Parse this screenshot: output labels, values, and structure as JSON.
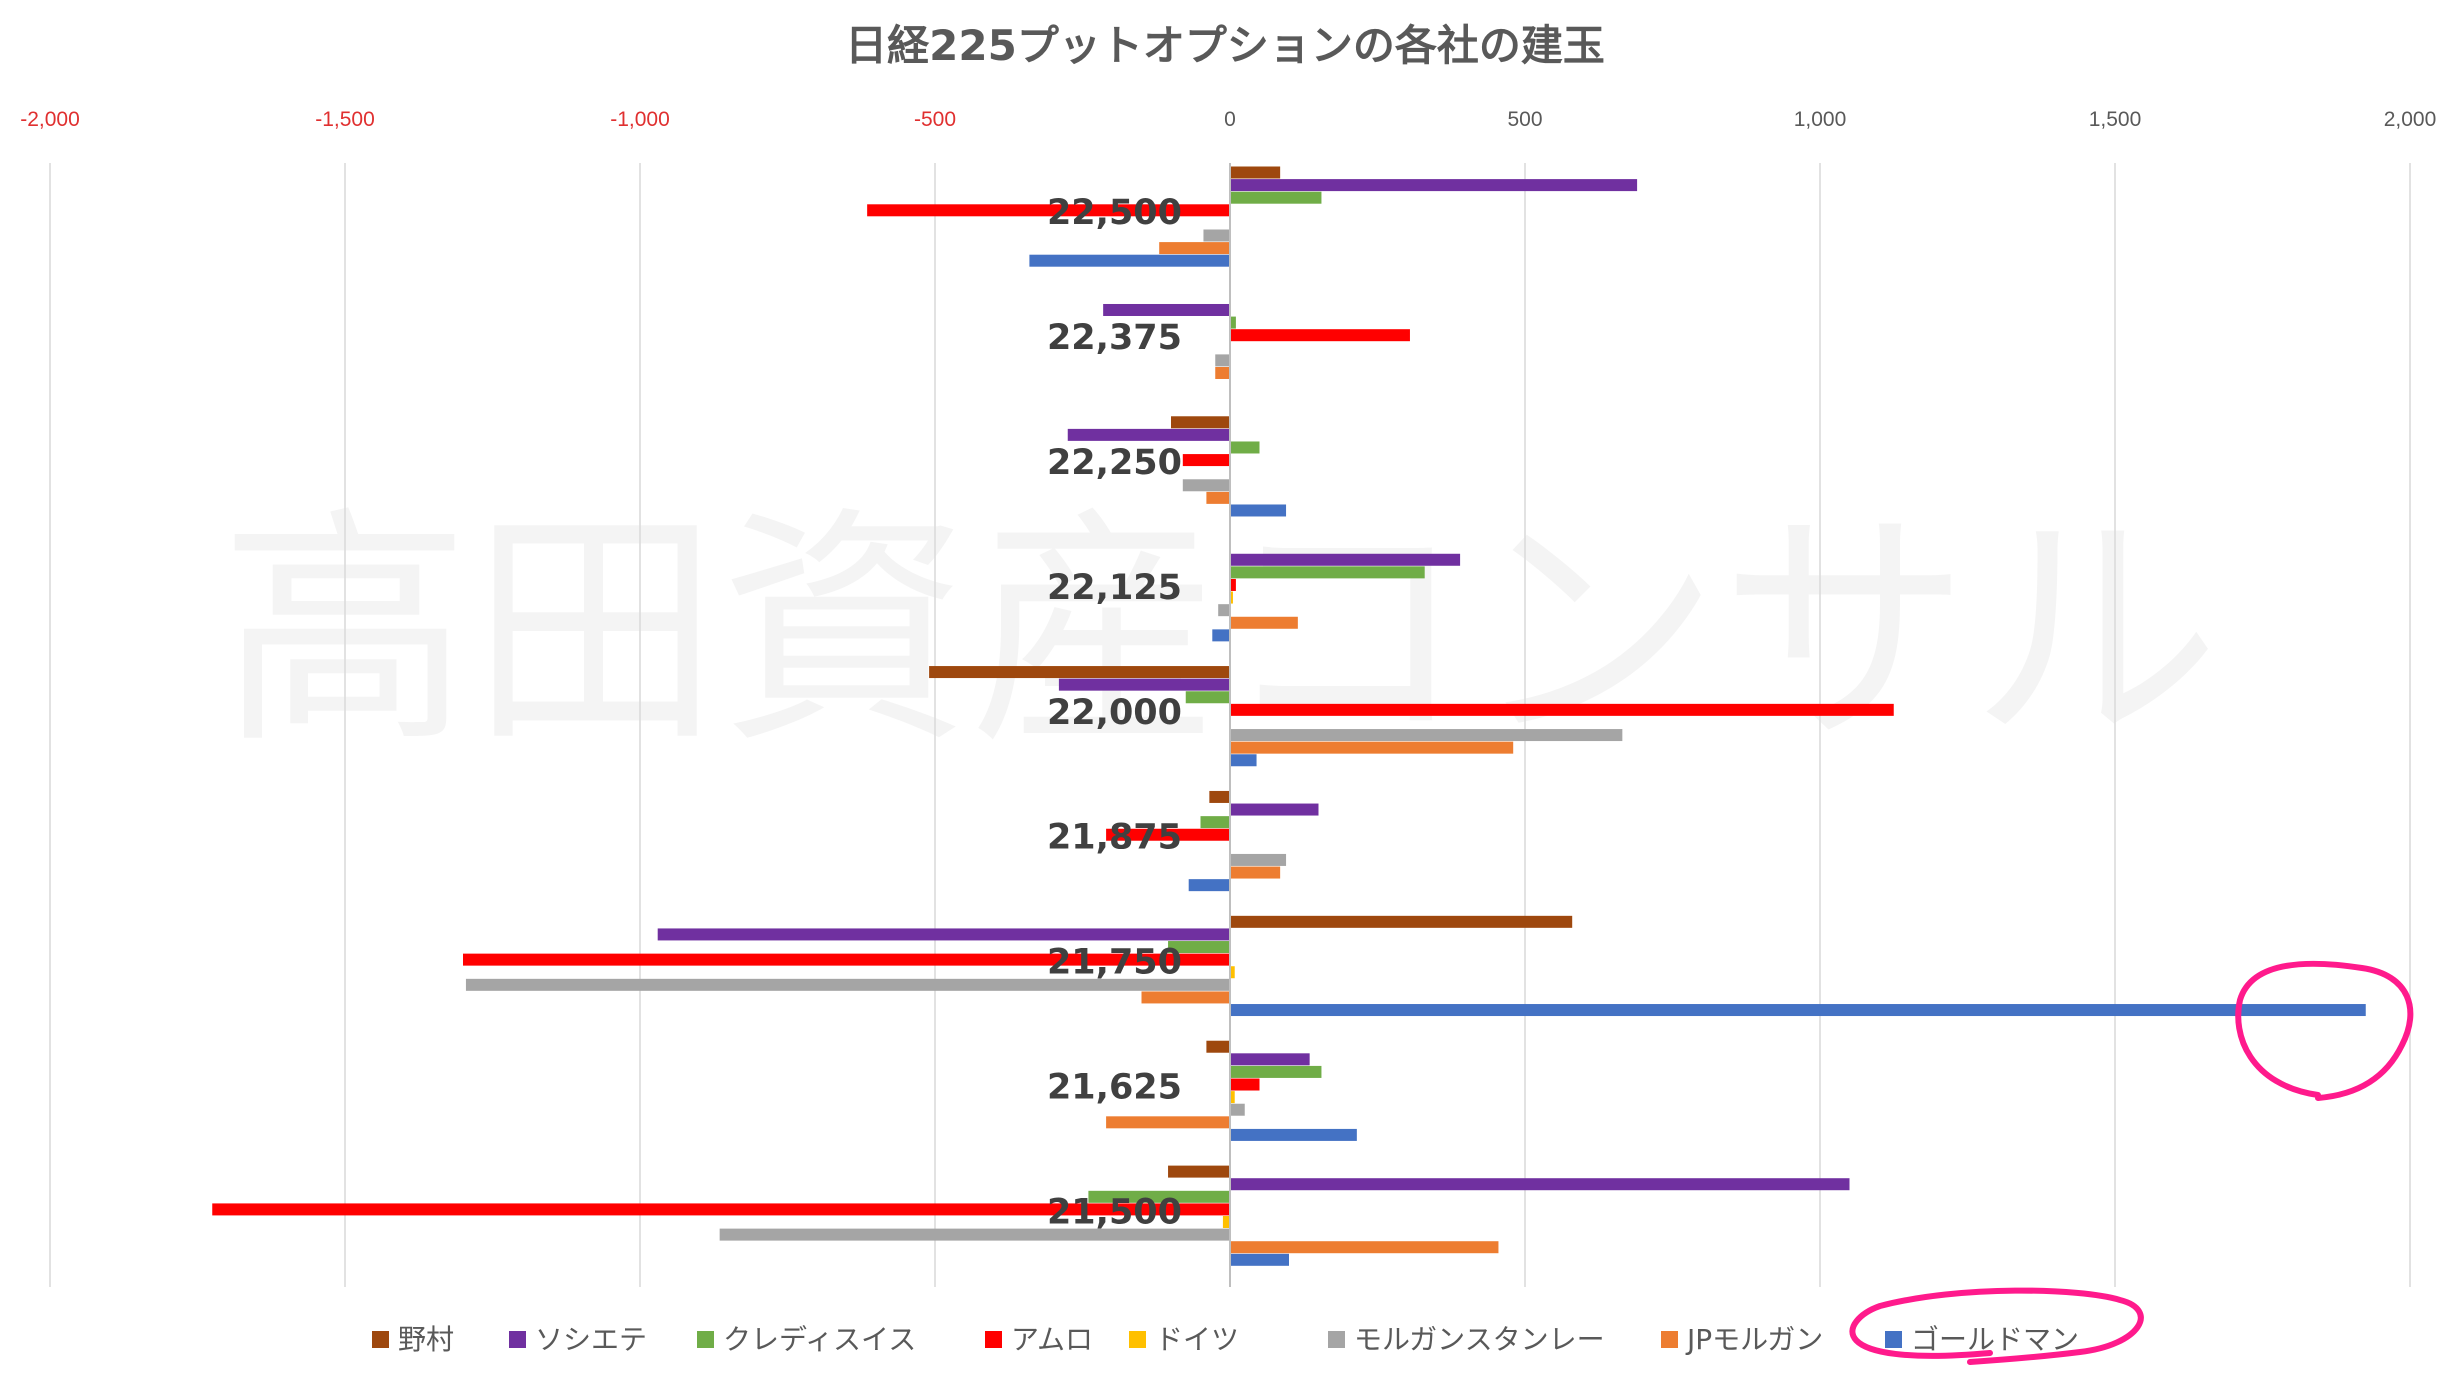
{
  "chart_data": {
    "type": "bar",
    "orientation": "horizontal",
    "title": "日経225プットオプションの各社の建玉",
    "watermark": "高田資産コンサル",
    "xlim": [
      -2000,
      2000
    ],
    "xticks": [
      -2000,
      -1500,
      -1000,
      -500,
      0,
      500,
      1000,
      1500,
      2000
    ],
    "xtick_labels": [
      "-2,000",
      "-1,500",
      "-1,000",
      "-500",
      "0",
      "500",
      "1,000",
      "1,500",
      "2,000"
    ],
    "negative_tick_color": "#e03030",
    "positive_tick_color": "#595959",
    "grid": true,
    "legend_position": "bottom",
    "categories": [
      "22,500",
      "22,375",
      "22,250",
      "22,125",
      "22,000",
      "21,875",
      "21,750",
      "21,625",
      "21,500"
    ],
    "series": [
      {
        "name": "野村",
        "color": "#9e480e",
        "values": [
          85,
          0,
          -100,
          0,
          -510,
          -35,
          580,
          -40,
          -105
        ]
      },
      {
        "name": "ソシエテ",
        "color": "#7030a0",
        "values": [
          690,
          -215,
          -275,
          390,
          -290,
          150,
          -970,
          135,
          1050
        ]
      },
      {
        "name": "クレディスイス",
        "color": "#70ad47",
        "values": [
          155,
          10,
          50,
          330,
          -75,
          -50,
          -105,
          155,
          -240
        ]
      },
      {
        "name": "アムロ",
        "color": "#ff0000",
        "values": [
          -615,
          305,
          -80,
          10,
          1125,
          -210,
          -1300,
          50,
          -1725
        ]
      },
      {
        "name": "ドイツ",
        "color": "#ffc000",
        "values": [
          0,
          0,
          0,
          5,
          0,
          0,
          8,
          8,
          -12
        ]
      },
      {
        "name": "モルガンスタンレー",
        "color": "#a5a5a5",
        "values": [
          -45,
          -25,
          -80,
          -20,
          665,
          95,
          -1295,
          25,
          -865
        ]
      },
      {
        "name": "JPモルガン",
        "color": "#ed7d31",
        "values": [
          -120,
          -25,
          -40,
          115,
          480,
          85,
          -150,
          -210,
          455
        ]
      },
      {
        "name": "ゴールドマン",
        "color": "#4472c4",
        "values": [
          -340,
          0,
          95,
          -30,
          45,
          -70,
          1925,
          215,
          100
        ]
      }
    ],
    "annotation": {
      "color": "#ff1a8c",
      "highlight_series": "ゴールドマン",
      "highlight_category": "21,750"
    }
  }
}
